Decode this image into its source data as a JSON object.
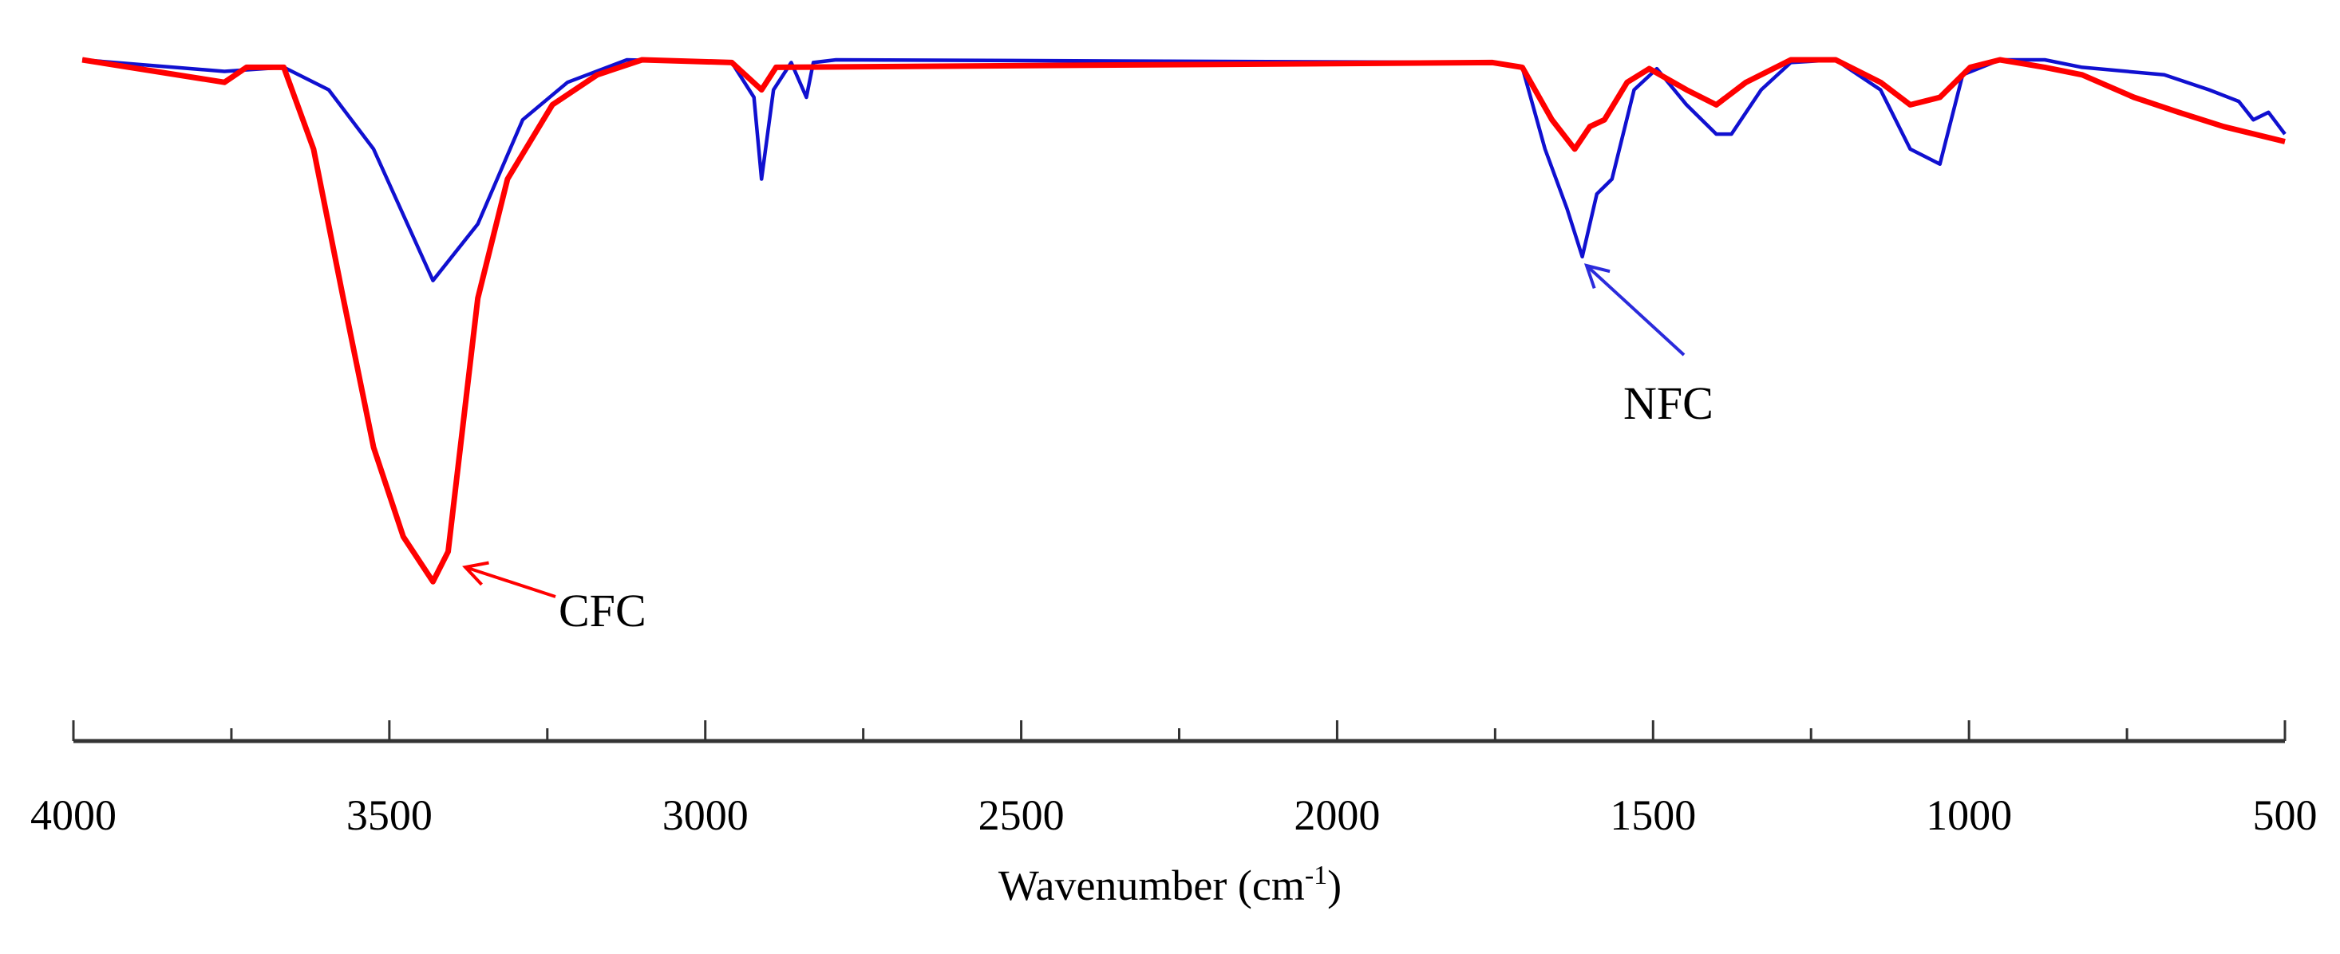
{
  "chart_data": {
    "type": "line",
    "title": "",
    "xlabel": "Wavenumber (cm",
    "xlabel_sup": "-1",
    "xlabel_close": ")",
    "ylabel": "",
    "xlim": [
      4000,
      500
    ],
    "x_reversed": true,
    "ylim": [
      0,
      100
    ],
    "y_axis_shown": false,
    "grid": false,
    "xticks_major": [
      4000,
      3500,
      3000,
      2500,
      2000,
      1500,
      1000,
      500
    ],
    "xticks_minor": [
      3750,
      3250,
      2750,
      2250,
      1750,
      1250,
      750
    ],
    "annotations": [
      {
        "text": "CFC",
        "series": "CFC",
        "points_to_x": 3420,
        "color": "#ff0000"
      },
      {
        "text": "NFC",
        "series": "NFC",
        "points_to_x": 1610,
        "color": "#2b2bdc"
      }
    ],
    "series": [
      {
        "name": "NFC",
        "color": "#1010d0",
        "x": [
          3986,
          3761,
          3667,
          3596,
          3525,
          3431,
          3360,
          3289,
          3218,
          3124,
          2958,
          2923,
          2911,
          2892,
          2864,
          2840,
          2829,
          2793,
          1754,
          1707,
          1671,
          1636,
          1612,
          1589,
          1565,
          1530,
          1494,
          1447,
          1400,
          1376,
          1329,
          1282,
          1211,
          1140,
          1093,
          1046,
          1010,
          951,
          880,
          821,
          691,
          620,
          573,
          550,
          526,
          500
        ],
        "y": [
          100,
          98.3,
          98.9,
          95.6,
          86.9,
          67.6,
          75.9,
          91.2,
          96.7,
          100,
          99.6,
          94.5,
          82.5,
          95.6,
          99.6,
          94.5,
          99.6,
          100,
          99.6,
          98.9,
          86.9,
          78.1,
          71.1,
          80.3,
          82.5,
          95.6,
          98.7,
          93.4,
          89.1,
          89.1,
          95.6,
          99.6,
          100,
          95.6,
          86.9,
          84.7,
          97.8,
          100,
          100,
          98.9,
          97.8,
          95.6,
          93.9,
          91.2,
          92.3,
          89.1
        ]
      },
      {
        "name": "CFC",
        "color": "#ff0000",
        "x": [
          3986,
          3761,
          3726,
          3667,
          3620,
          3573,
          3525,
          3478,
          3431,
          3407,
          3360,
          3313,
          3242,
          3171,
          3100,
          2958,
          2911,
          2888,
          1754,
          1707,
          1660,
          1624,
          1600,
          1577,
          1541,
          1506,
          1447,
          1400,
          1353,
          1282,
          1211,
          1140,
          1093,
          1046,
          998,
          951,
          880,
          821,
          739,
          668,
          597,
          500
        ],
        "y": [
          100,
          96.7,
          98.9,
          98.9,
          86.9,
          65.0,
          43.1,
          30.0,
          23.4,
          27.8,
          65.0,
          82.5,
          93.4,
          97.8,
          100,
          99.6,
          95.6,
          98.9,
          99.6,
          98.9,
          91.2,
          86.9,
          90.2,
          91.2,
          96.7,
          98.7,
          95.6,
          93.4,
          96.7,
          100,
          100,
          96.7,
          93.4,
          94.5,
          98.9,
          100,
          98.9,
          97.8,
          94.5,
          92.3,
          90.2,
          88.0
        ]
      }
    ]
  }
}
